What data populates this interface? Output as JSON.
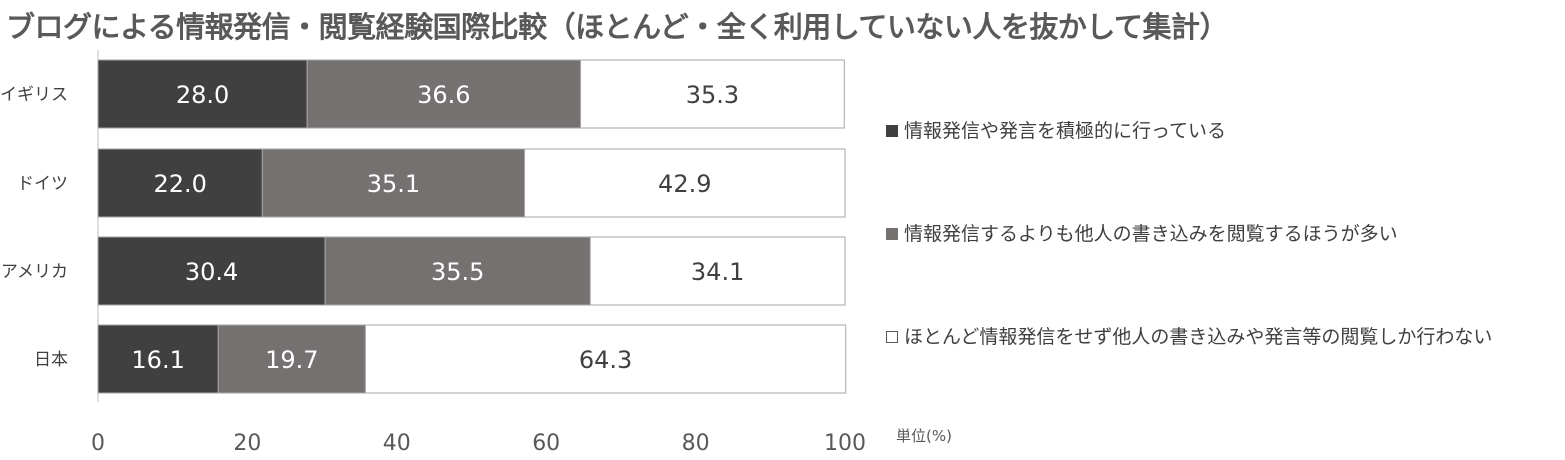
{
  "chart_data": {
    "type": "bar",
    "orientation": "horizontal",
    "stacked": true,
    "title": "ブログによる情報発信・閲覧経験国際比較（ほとんど・全く利用していない人を抜かして集計）",
    "categories": [
      "イギリス",
      "ドイツ",
      "アメリカ",
      "日本"
    ],
    "series": [
      {
        "name": "情報発信や発言を積極的に行っている",
        "values": [
          28.0,
          22.0,
          30.4,
          16.1
        ],
        "color": "#404040",
        "label_color": "#ffffff"
      },
      {
        "name": "情報発信するよりも他人の書き込みを閲覧するほうが多い",
        "values": [
          36.6,
          35.1,
          35.5,
          19.7
        ],
        "color": "#767171",
        "label_color": "#ffffff"
      },
      {
        "name": "ほとんど情報発信をせず他人の書き込みや発言等の閲覧しか行わない",
        "values": [
          35.3,
          42.9,
          34.1,
          64.3
        ],
        "color": "#ffffff",
        "label_color": "#404040"
      }
    ],
    "xlim": [
      0,
      100
    ],
    "xticks": [
      "0",
      "20",
      "40",
      "60",
      "80",
      "100"
    ],
    "unit_label": "単位(%)",
    "grid": false,
    "legend_position": "right"
  }
}
